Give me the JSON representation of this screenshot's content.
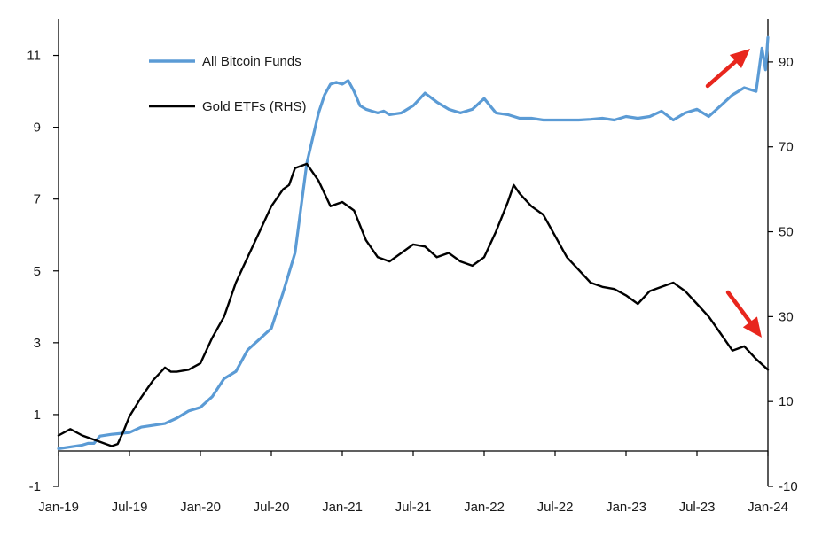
{
  "chart_data": {
    "type": "line",
    "title": "",
    "xlabel": "",
    "x_tick_labels": [
      "Jan-19",
      "Jul-19",
      "Jan-20",
      "Jul-20",
      "Jan-21",
      "Jul-21",
      "Jan-22",
      "Jul-22",
      "Jan-23",
      "Jul-23",
      "Jan-24"
    ],
    "left_axis": {
      "ylim": [
        -1,
        12
      ],
      "ticks": [
        -1,
        1,
        3,
        5,
        7,
        9,
        11
      ]
    },
    "right_axis": {
      "ylim": [
        -10,
        100
      ],
      "ticks": [
        -10,
        10,
        30,
        50,
        70,
        90
      ]
    },
    "colors": {
      "bitcoin": "#5b9bd5",
      "gold": "#000000",
      "arrow": "#e8261d"
    },
    "series": [
      {
        "name": "All Bitcoin Funds",
        "axis": "left",
        "t": [
          0,
          1.0,
          2.0,
          2.5,
          3.0,
          3.5,
          4.5,
          6.0,
          7.0,
          8.0,
          9.0,
          10.0,
          11.0,
          12.0,
          13.0,
          14.0,
          15.0,
          16.0,
          17.0,
          18.0,
          19.0,
          20.0,
          21.0,
          22.0,
          22.5,
          23.0,
          23.5,
          24.0,
          24.5,
          25.0,
          25.5,
          26.0,
          26.5,
          27.0,
          27.5,
          28.0,
          29.0,
          30.0,
          31.0,
          32.0,
          33.0,
          34.0,
          35.0,
          36.0,
          37.0,
          38.0,
          39.0,
          40.0,
          41.0,
          42.0,
          43.0,
          44.0,
          45.0,
          46.0,
          47.0,
          48.0,
          49.0,
          50.0,
          51.0,
          52.0,
          53.0,
          54.0,
          55.0,
          56.0,
          57.0,
          58.0,
          59.0,
          59.5,
          59.8,
          60.0
        ],
        "values": [
          0.05,
          0.1,
          0.15,
          0.2,
          0.2,
          0.4,
          0.45,
          0.5,
          0.65,
          0.7,
          0.75,
          0.9,
          1.1,
          1.2,
          1.5,
          2.0,
          2.2,
          2.8,
          3.1,
          3.4,
          4.4,
          5.5,
          8.0,
          9.4,
          9.9,
          10.2,
          10.25,
          10.2,
          10.3,
          10.0,
          9.6,
          9.5,
          9.45,
          9.4,
          9.45,
          9.35,
          9.4,
          9.6,
          9.95,
          9.7,
          9.5,
          9.4,
          9.5,
          9.8,
          9.4,
          9.35,
          9.25,
          9.25,
          9.2,
          9.2,
          9.2,
          9.2,
          9.22,
          9.25,
          9.2,
          9.3,
          9.25,
          9.3,
          9.45,
          9.2,
          9.4,
          9.5,
          9.3,
          9.6,
          9.9,
          10.1,
          10.0,
          11.2,
          10.6,
          11.5
        ]
      },
      {
        "name": "Gold ETFs (RHS)",
        "axis": "right",
        "t": [
          0,
          1.0,
          2.0,
          3.0,
          4.0,
          4.5,
          5.0,
          5.5,
          6.0,
          7.0,
          8.0,
          9.0,
          9.5,
          10.0,
          11.0,
          12.0,
          13.0,
          14.0,
          15.0,
          16.0,
          17.0,
          18.0,
          19.0,
          19.5,
          20.0,
          21.0,
          22.0,
          23.0,
          24.0,
          25.0,
          26.0,
          27.0,
          28.0,
          29.0,
          30.0,
          31.0,
          32.0,
          33.0,
          34.0,
          35.0,
          36.0,
          37.0,
          38.0,
          38.5,
          39.0,
          40.0,
          41.0,
          42.0,
          43.0,
          44.0,
          45.0,
          46.0,
          47.0,
          48.0,
          49.0,
          50.0,
          51.0,
          52.0,
          53.0,
          54.0,
          55.0,
          56.0,
          56.5,
          57.0,
          58.0,
          59.0,
          60.0
        ],
        "values": [
          2,
          3.5,
          2.0,
          1.0,
          0.0,
          -0.5,
          0.0,
          3.0,
          6.5,
          11,
          15,
          18,
          17,
          17,
          17.5,
          19,
          25,
          30,
          38,
          44,
          50,
          56,
          60,
          61,
          65,
          66,
          62,
          56,
          57,
          55,
          48,
          44,
          43,
          45,
          47,
          46.5,
          44,
          45,
          43,
          42,
          44,
          50,
          57,
          61,
          59,
          56,
          54,
          49,
          44,
          41,
          38,
          37,
          36.5,
          35,
          33,
          36,
          37,
          38,
          36,
          33,
          30,
          26,
          24,
          22,
          23,
          20,
          17.5
        ]
      }
    ],
    "legend": [
      {
        "label": "All Bitcoin Funds",
        "color": "#5b9bd5"
      },
      {
        "label": "Gold ETFs (RHS)",
        "color": "#000000"
      }
    ]
  }
}
